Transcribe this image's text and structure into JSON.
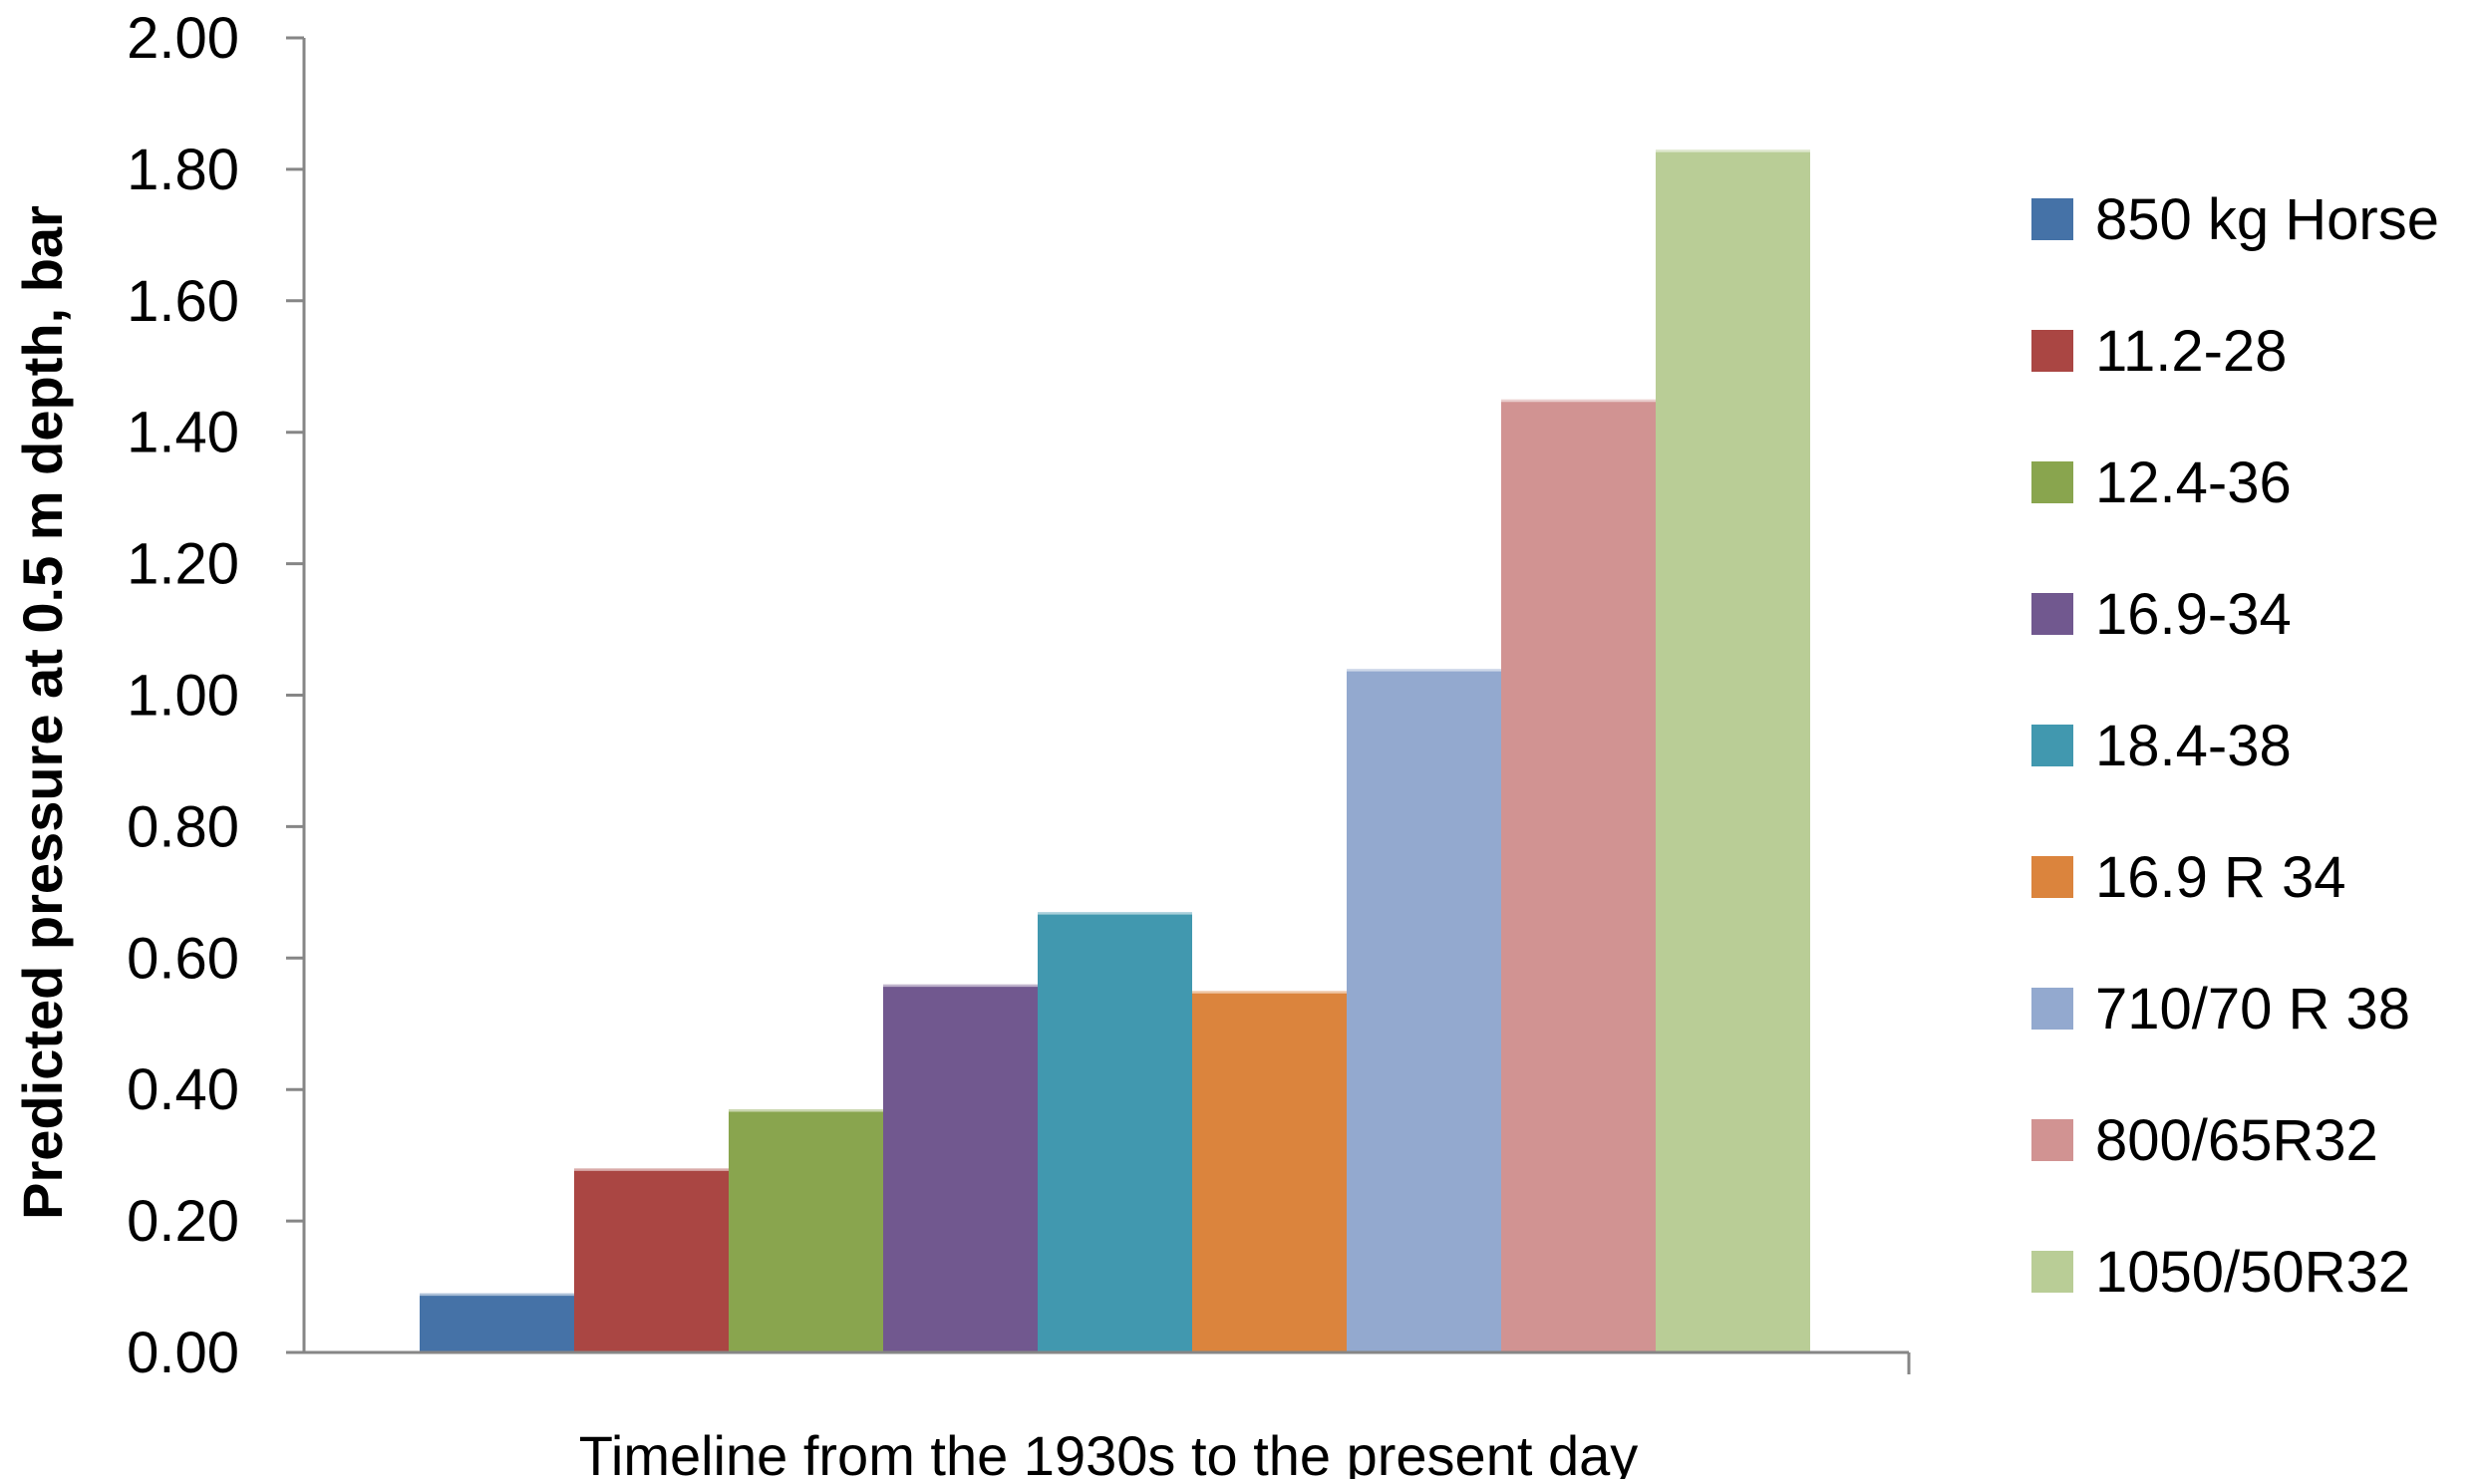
{
  "chart_data": {
    "type": "bar",
    "title": "",
    "xlabel": "Timeline from the 1930s to the present day",
    "ylabel": "Predicted pressure at 0.5 m depth, bar",
    "ylim": [
      0,
      2.0
    ],
    "yticks": [
      "0.00",
      "0.20",
      "0.40",
      "0.60",
      "0.80",
      "1.00",
      "1.20",
      "1.40",
      "1.60",
      "1.80",
      "2.00"
    ],
    "grid": false,
    "legend_position": "right",
    "series": [
      {
        "name": "850 kg Horse",
        "value": 0.09,
        "color": "#4572A7"
      },
      {
        "name": "11.2-28",
        "value": 0.28,
        "color": "#AA4643"
      },
      {
        "name": "12.4-36",
        "value": 0.37,
        "color": "#89A54E"
      },
      {
        "name": "16.9-34",
        "value": 0.56,
        "color": "#71588F"
      },
      {
        "name": "18.4-38",
        "value": 0.67,
        "color": "#4198AF"
      },
      {
        "name": "16.9 R 34",
        "value": 0.55,
        "color": "#DB843D"
      },
      {
        "name": "710/70 R 38",
        "value": 1.04,
        "color": "#93A9CF"
      },
      {
        "name": "800/65R32",
        "value": 1.45,
        "color": "#D19392"
      },
      {
        "name": "1050/50R32",
        "value": 1.83,
        "color": "#B9CD96"
      }
    ]
  }
}
